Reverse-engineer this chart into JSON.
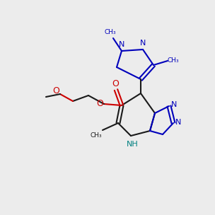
{
  "bg": "#ececec",
  "black": "#1a1a1a",
  "blue": "#0000bb",
  "red": "#cc0000",
  "teal": "#008080",
  "figsize": [
    3.0,
    3.0
  ],
  "dpi": 100
}
